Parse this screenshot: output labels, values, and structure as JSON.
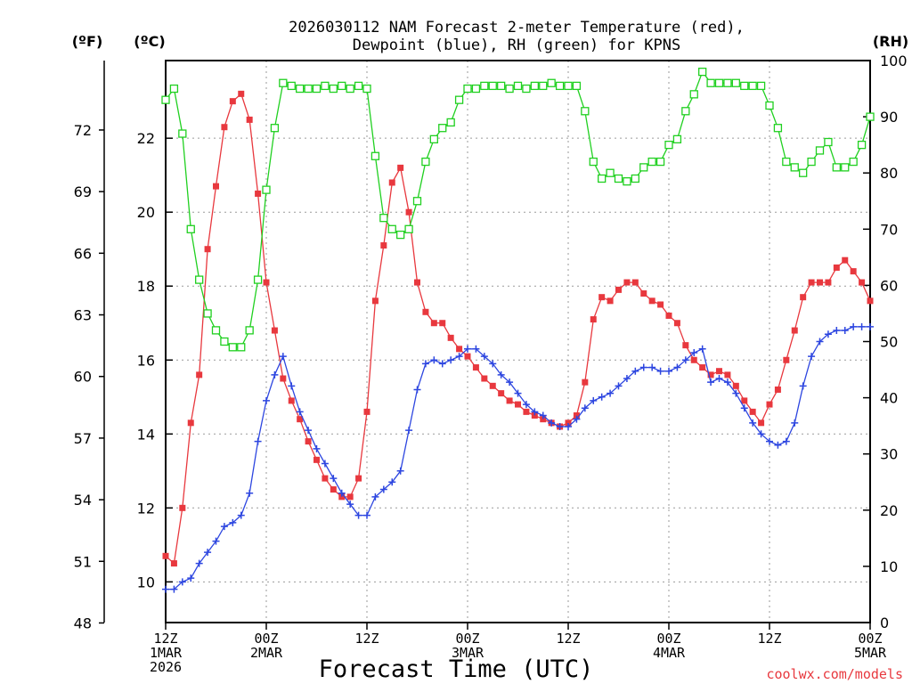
{
  "chart_data": {
    "type": "line",
    "title_line1": "2026030112 NAM Forecast 2-meter Temperature (red),",
    "title_line2": "Dewpoint (blue), RH (green) for KPNS",
    "xlabel": "Forecast Time (UTC)",
    "credit": "coolwx.com/models",
    "units": {
      "fahrenheit": "(ºF)",
      "celsius": "(ºC)",
      "rh": "(RH)"
    },
    "x_range": [
      0,
      84
    ],
    "x_ticks": [
      {
        "h": 0,
        "lines": [
          "12Z",
          "1MAR",
          "2026"
        ]
      },
      {
        "h": 12,
        "lines": [
          "00Z",
          "2MAR"
        ]
      },
      {
        "h": 24,
        "lines": [
          "12Z"
        ]
      },
      {
        "h": 36,
        "lines": [
          "00Z",
          "3MAR"
        ]
      },
      {
        "h": 48,
        "lines": [
          "12Z"
        ]
      },
      {
        "h": 60,
        "lines": [
          "00Z",
          "4MAR"
        ]
      },
      {
        "h": 72,
        "lines": [
          "12Z"
        ]
      },
      {
        "h": 84,
        "lines": [
          "00Z",
          "5MAR"
        ]
      }
    ],
    "celsius_axis": {
      "range": [
        8.9,
        24.1
      ],
      "ticks": [
        "10",
        "12",
        "14",
        "16",
        "18",
        "20",
        "22"
      ]
    },
    "fahrenheit_axis": {
      "ticks": [
        "48",
        "51",
        "54",
        "57",
        "60",
        "63",
        "66",
        "69",
        "72"
      ]
    },
    "rh_axis": {
      "range": [
        0,
        100
      ],
      "ticks": [
        "0",
        "10",
        "20",
        "30",
        "40",
        "50",
        "60",
        "70",
        "80",
        "90",
        "100"
      ]
    },
    "series": [
      {
        "name": "Temperature",
        "color": "#e8383e",
        "unit": "C",
        "marker": "filled-square",
        "points": [
          [
            0,
            10.7
          ],
          [
            1,
            10.5
          ],
          [
            2,
            12.0
          ],
          [
            3,
            14.3
          ],
          [
            4,
            15.6
          ],
          [
            5,
            19.0
          ],
          [
            6,
            20.7
          ],
          [
            7,
            22.3
          ],
          [
            8,
            23.0
          ],
          [
            9,
            23.2
          ],
          [
            10,
            22.5
          ],
          [
            11,
            20.5
          ],
          [
            12,
            18.1
          ],
          [
            13,
            16.8
          ],
          [
            14,
            15.5
          ],
          [
            15,
            14.9
          ],
          [
            16,
            14.4
          ],
          [
            17,
            13.8
          ],
          [
            18,
            13.3
          ],
          [
            19,
            12.8
          ],
          [
            20,
            12.5
          ],
          [
            21,
            12.3
          ],
          [
            22,
            12.3
          ],
          [
            23,
            12.8
          ],
          [
            24,
            14.6
          ],
          [
            25,
            17.6
          ],
          [
            26,
            19.1
          ],
          [
            27,
            20.8
          ],
          [
            28,
            21.2
          ],
          [
            29,
            20.0
          ],
          [
            30,
            18.1
          ],
          [
            31,
            17.3
          ],
          [
            32,
            17.0
          ],
          [
            33,
            17.0
          ],
          [
            34,
            16.6
          ],
          [
            35,
            16.3
          ],
          [
            36,
            16.1
          ],
          [
            37,
            15.8
          ],
          [
            38,
            15.5
          ],
          [
            39,
            15.3
          ],
          [
            40,
            15.1
          ],
          [
            41,
            14.9
          ],
          [
            42,
            14.8
          ],
          [
            43,
            14.6
          ],
          [
            44,
            14.5
          ],
          [
            45,
            14.4
          ],
          [
            46,
            14.3
          ],
          [
            47,
            14.2
          ],
          [
            48,
            14.3
          ],
          [
            49,
            14.5
          ],
          [
            50,
            15.4
          ],
          [
            51,
            17.1
          ],
          [
            52,
            17.7
          ],
          [
            53,
            17.6
          ],
          [
            54,
            17.9
          ],
          [
            55,
            18.1
          ],
          [
            56,
            18.1
          ],
          [
            57,
            17.8
          ],
          [
            58,
            17.6
          ],
          [
            59,
            17.5
          ],
          [
            60,
            17.2
          ],
          [
            61,
            17.0
          ],
          [
            62,
            16.4
          ],
          [
            63,
            16.0
          ],
          [
            64,
            15.8
          ],
          [
            65,
            15.6
          ],
          [
            66,
            15.7
          ],
          [
            67,
            15.6
          ],
          [
            68,
            15.3
          ],
          [
            69,
            14.9
          ],
          [
            70,
            14.6
          ],
          [
            71,
            14.3
          ],
          [
            72,
            14.8
          ],
          [
            73,
            15.2
          ],
          [
            74,
            16.0
          ],
          [
            75,
            16.8
          ],
          [
            76,
            17.7
          ],
          [
            77,
            18.1
          ],
          [
            78,
            18.1
          ],
          [
            79,
            18.1
          ],
          [
            80,
            18.5
          ],
          [
            81,
            18.7
          ],
          [
            82,
            18.4
          ],
          [
            83,
            18.1
          ],
          [
            84,
            17.6
          ]
        ]
      },
      {
        "name": "Dewpoint",
        "color": "#2d46e0",
        "unit": "C",
        "marker": "plus",
        "points": [
          [
            0,
            9.8
          ],
          [
            1,
            9.8
          ],
          [
            2,
            10.0
          ],
          [
            3,
            10.1
          ],
          [
            4,
            10.5
          ],
          [
            5,
            10.8
          ],
          [
            6,
            11.1
          ],
          [
            7,
            11.5
          ],
          [
            8,
            11.6
          ],
          [
            9,
            11.8
          ],
          [
            10,
            12.4
          ],
          [
            11,
            13.8
          ],
          [
            12,
            14.9
          ],
          [
            13,
            15.6
          ],
          [
            14,
            16.1
          ],
          [
            15,
            15.3
          ],
          [
            16,
            14.6
          ],
          [
            17,
            14.1
          ],
          [
            18,
            13.6
          ],
          [
            19,
            13.2
          ],
          [
            20,
            12.8
          ],
          [
            21,
            12.4
          ],
          [
            22,
            12.1
          ],
          [
            23,
            11.8
          ],
          [
            24,
            11.8
          ],
          [
            25,
            12.3
          ],
          [
            26,
            12.5
          ],
          [
            27,
            12.7
          ],
          [
            28,
            13.0
          ],
          [
            29,
            14.1
          ],
          [
            30,
            15.2
          ],
          [
            31,
            15.9
          ],
          [
            32,
            16.0
          ],
          [
            33,
            15.9
          ],
          [
            34,
            16.0
          ],
          [
            35,
            16.1
          ],
          [
            36,
            16.3
          ],
          [
            37,
            16.3
          ],
          [
            38,
            16.1
          ],
          [
            39,
            15.9
          ],
          [
            40,
            15.6
          ],
          [
            41,
            15.4
          ],
          [
            42,
            15.1
          ],
          [
            43,
            14.8
          ],
          [
            44,
            14.6
          ],
          [
            45,
            14.5
          ],
          [
            46,
            14.3
          ],
          [
            47,
            14.2
          ],
          [
            48,
            14.2
          ],
          [
            49,
            14.4
          ],
          [
            50,
            14.7
          ],
          [
            51,
            14.9
          ],
          [
            52,
            15.0
          ],
          [
            53,
            15.1
          ],
          [
            54,
            15.3
          ],
          [
            55,
            15.5
          ],
          [
            56,
            15.7
          ],
          [
            57,
            15.8
          ],
          [
            58,
            15.8
          ],
          [
            59,
            15.7
          ],
          [
            60,
            15.7
          ],
          [
            61,
            15.8
          ],
          [
            62,
            16.0
          ],
          [
            63,
            16.2
          ],
          [
            64,
            16.3
          ],
          [
            65,
            15.4
          ],
          [
            66,
            15.5
          ],
          [
            67,
            15.4
          ],
          [
            68,
            15.1
          ],
          [
            69,
            14.7
          ],
          [
            70,
            14.3
          ],
          [
            71,
            14.0
          ],
          [
            72,
            13.8
          ],
          [
            73,
            13.7
          ],
          [
            74,
            13.8
          ],
          [
            75,
            14.3
          ],
          [
            76,
            15.3
          ],
          [
            77,
            16.1
          ],
          [
            78,
            16.5
          ],
          [
            79,
            16.7
          ],
          [
            80,
            16.8
          ],
          [
            81,
            16.8
          ],
          [
            82,
            16.9
          ],
          [
            83,
            16.9
          ],
          [
            84,
            16.9
          ]
        ]
      },
      {
        "name": "RH",
        "color": "#20d020",
        "unit": "RH",
        "marker": "open-square",
        "points": [
          [
            0,
            93
          ],
          [
            1,
            95
          ],
          [
            2,
            87
          ],
          [
            3,
            70
          ],
          [
            4,
            61
          ],
          [
            5,
            55
          ],
          [
            6,
            52
          ],
          [
            7,
            50
          ],
          [
            8,
            49
          ],
          [
            9,
            49
          ],
          [
            10,
            52
          ],
          [
            11,
            61
          ],
          [
            12,
            77
          ],
          [
            13,
            88
          ],
          [
            14,
            96
          ],
          [
            15,
            95.5
          ],
          [
            16,
            95
          ],
          [
            17,
            95
          ],
          [
            18,
            95
          ],
          [
            19,
            95.5
          ],
          [
            20,
            95
          ],
          [
            21,
            95.5
          ],
          [
            22,
            95
          ],
          [
            23,
            95.5
          ],
          [
            24,
            95
          ],
          [
            25,
            83
          ],
          [
            26,
            72
          ],
          [
            27,
            70
          ],
          [
            28,
            69
          ],
          [
            29,
            70
          ],
          [
            30,
            75
          ],
          [
            31,
            82
          ],
          [
            32,
            86
          ],
          [
            33,
            88
          ],
          [
            34,
            89
          ],
          [
            35,
            93
          ],
          [
            36,
            95
          ],
          [
            37,
            95
          ],
          [
            38,
            95.5
          ],
          [
            39,
            95.5
          ],
          [
            40,
            95.5
          ],
          [
            41,
            95
          ],
          [
            42,
            95.5
          ],
          [
            43,
            95
          ],
          [
            44,
            95.5
          ],
          [
            45,
            95.5
          ],
          [
            46,
            96
          ],
          [
            47,
            95.5
          ],
          [
            48,
            95.5
          ],
          [
            49,
            95.5
          ],
          [
            50,
            91
          ],
          [
            51,
            82
          ],
          [
            52,
            79
          ],
          [
            53,
            80
          ],
          [
            54,
            79
          ],
          [
            55,
            78.5
          ],
          [
            56,
            79
          ],
          [
            57,
            81
          ],
          [
            58,
            82
          ],
          [
            59,
            82
          ],
          [
            60,
            85
          ],
          [
            61,
            86
          ],
          [
            62,
            91
          ],
          [
            63,
            94
          ],
          [
            64,
            98
          ],
          [
            65,
            96
          ],
          [
            66,
            96
          ],
          [
            67,
            96
          ],
          [
            68,
            96
          ],
          [
            69,
            95.5
          ],
          [
            70,
            95.5
          ],
          [
            71,
            95.5
          ],
          [
            72,
            92
          ],
          [
            73,
            88
          ],
          [
            74,
            82
          ],
          [
            75,
            81
          ],
          [
            76,
            80
          ],
          [
            77,
            82
          ],
          [
            78,
            84
          ],
          [
            79,
            85.5
          ],
          [
            80,
            81
          ],
          [
            81,
            81
          ],
          [
            82,
            82
          ],
          [
            83,
            85
          ],
          [
            84,
            90
          ]
        ]
      }
    ]
  }
}
